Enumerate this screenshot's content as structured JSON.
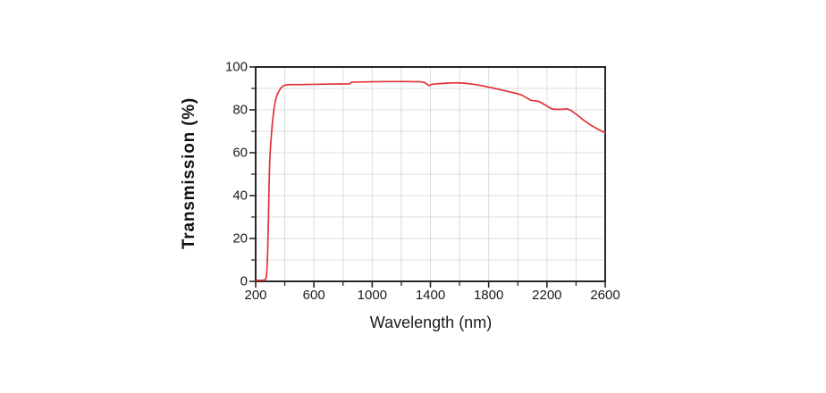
{
  "chart_data": {
    "type": "line",
    "title": "",
    "xlabel": "Wavelength (nm)",
    "ylabel": "Transmission (%)",
    "xlim": [
      200,
      2600
    ],
    "ylim": [
      0,
      100
    ],
    "x_major_ticks": [
      200,
      600,
      1000,
      1400,
      1800,
      2200,
      2600
    ],
    "x_minor_ticks": [
      400,
      800,
      1200,
      1600,
      2000,
      2400
    ],
    "y_major_ticks": [
      0,
      20,
      40,
      60,
      80,
      100
    ],
    "y_minor_ticks": [
      10,
      30,
      50,
      70,
      90
    ],
    "grid": {
      "show": true,
      "x_interval": 200,
      "y_interval": 10,
      "color": "#dcdcdc"
    },
    "legend": {
      "show": false
    },
    "series": [
      {
        "name": "transmission",
        "color": "#e23137",
        "x": [
          200,
          255,
          265,
          272,
          278,
          283,
          288,
          292,
          296,
          302,
          310,
          318,
          327,
          338,
          350,
          362,
          375,
          390,
          410,
          450,
          500,
          600,
          700,
          800,
          845,
          852,
          860,
          900,
          1000,
          1100,
          1250,
          1330,
          1360,
          1378,
          1390,
          1405,
          1430,
          1470,
          1520,
          1580,
          1640,
          1700,
          1760,
          1800,
          1850,
          1900,
          1950,
          2000,
          2030,
          2060,
          2085,
          2105,
          2135,
          2160,
          2190,
          2220,
          2245,
          2280,
          2310,
          2335,
          2355,
          2380,
          2410,
          2450,
          2500,
          2550,
          2600
        ],
        "y": [
          0.5,
          0.5,
          0.8,
          1.5,
          6,
          15,
          30,
          45,
          55,
          63,
          70,
          76,
          81,
          85,
          87.5,
          89,
          90.3,
          91.2,
          91.7,
          91.8,
          91.8,
          91.9,
          92,
          92.1,
          92.1,
          92.6,
          92.9,
          93,
          93.1,
          93.2,
          93.2,
          93.1,
          92.8,
          91.9,
          91.3,
          91.8,
          92.1,
          92.3,
          92.5,
          92.6,
          92.4,
          91.9,
          91.2,
          90.6,
          89.9,
          89.1,
          88.3,
          87.5,
          86.8,
          85.6,
          84.6,
          84.3,
          84.1,
          83.4,
          82.2,
          80.9,
          80.3,
          80.2,
          80.3,
          80.5,
          80.1,
          79,
          77.5,
          75.3,
          72.9,
          71,
          69.3
        ]
      }
    ]
  },
  "colors": {
    "axis": "#2b2525",
    "text": "#1d1a1a",
    "grid": "#dcdcdc",
    "line": "#e23137",
    "background": "#ffffff"
  }
}
